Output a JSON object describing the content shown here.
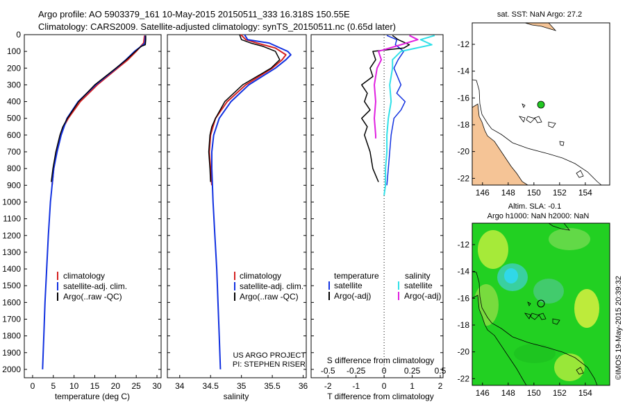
{
  "header": {
    "line1": "Argo profile: AO 5903379_161 10-May-2015 20150511_333 16.318S 150.55E",
    "line2": "Climatology: CARS2009. Satellite-adjusted climatology: synTS_20150511.nc (0.65d later)"
  },
  "colors": {
    "climatology": "#d42020",
    "satellite_temp": "#1030e0",
    "argo": "#000000",
    "satellite_sal": "#30e0e8",
    "argo_sal": "#e020e0",
    "land": "#f5c496",
    "sla_bg": "#22d022"
  },
  "profile_legend": [
    {
      "label": "climatology",
      "color": "#d42020"
    },
    {
      "label": "satellite-adj. clim.",
      "color": "#1030e0"
    },
    {
      "label": "Argo(..raw -QC)",
      "color": "#000000"
    }
  ],
  "diff_legend": {
    "temperature_header": "temperature",
    "salinity_header": "salinity",
    "entries": [
      {
        "label": "satellite",
        "color": "#1030e0"
      },
      {
        "label": "Argo(-adj)",
        "color": "#000000"
      },
      {
        "label": "satellite",
        "color": "#30e0e8"
      },
      {
        "label": "Argo(-adj)",
        "color": "#e020e0"
      }
    ]
  },
  "credit": {
    "line1": "US ARGO PROJECT",
    "line2": "PI: STEPHEN RISER"
  },
  "maps": {
    "sst_title": "sat. SST: NaN Argo: 27.2",
    "sla_title1": "Altim. SLA: -0.1",
    "sla_title2": "Argo h1000: NaN h2000: NaN",
    "x_ticks": [
      "146",
      "148",
      "150",
      "152",
      "154"
    ],
    "y_ticks": [
      "-12",
      "-14",
      "-16",
      "-18",
      "-20",
      "-22"
    ],
    "argo_position": {
      "lon": 150.55,
      "lat": -16.318
    }
  },
  "stamp": "©IMOS 19-May-2015 20:39:32",
  "chart_data": [
    {
      "type": "line",
      "xlabel": "temperature (deg C)",
      "ylabel": "",
      "xlim": [
        -2,
        31
      ],
      "ylim": [
        2050,
        0
      ],
      "x_ticks": [
        "0",
        "5",
        "10",
        "15",
        "20",
        "25",
        "30"
      ],
      "y_ticks": [
        "0",
        "100",
        "200",
        "300",
        "400",
        "500",
        "600",
        "700",
        "800",
        "900",
        "1000",
        "1100",
        "1200",
        "1300",
        "1400",
        "1500",
        "1600",
        "1700",
        "1800",
        "1900",
        "2000"
      ],
      "series": [
        {
          "name": "climatology",
          "color": "#d42020",
          "width": 2,
          "depth": [
            5,
            50,
            100,
            150,
            200,
            300,
            400,
            500,
            550,
            600,
            700,
            800,
            900
          ],
          "values": [
            27,
            26.8,
            25,
            23,
            20.5,
            15.6,
            11.5,
            8.6,
            7.5,
            6.8,
            5.8,
            5.1,
            4.7
          ]
        },
        {
          "name": "satellite-adj. clim.",
          "color": "#1030e0",
          "width": 2,
          "depth": [
            5,
            50,
            60,
            100,
            150,
            200,
            300,
            400,
            500,
            600,
            700,
            800,
            900,
            1000,
            1200,
            1400,
            1600,
            1800,
            2000
          ],
          "values": [
            27.2,
            27.1,
            26.7,
            24.6,
            22.5,
            20.2,
            15.2,
            11,
            8.3,
            6.9,
            5.9,
            5.1,
            4.7,
            4.3,
            3.8,
            3.4,
            3,
            2.7,
            2.4
          ]
        },
        {
          "name": "Argo(..raw -QC)",
          "color": "#000000",
          "width": 1.5,
          "depth": [
            5,
            30,
            60,
            70,
            100,
            150,
            200,
            300,
            400,
            500,
            550,
            600,
            700,
            800,
            880
          ],
          "values": [
            27.3,
            27.3,
            27.2,
            26.2,
            24.8,
            22.6,
            20.1,
            15,
            11.1,
            8.4,
            7.3,
            6.6,
            5.6,
            4.9,
            4.5
          ]
        }
      ]
    },
    {
      "type": "line",
      "xlabel": "salinity",
      "ylabel": "",
      "xlim": [
        33.8,
        36.05
      ],
      "ylim": [
        2050,
        0
      ],
      "x_ticks": [
        "34",
        "34.5",
        "35",
        "35.5",
        "36"
      ],
      "series": [
        {
          "name": "climatology",
          "color": "#d42020",
          "width": 2,
          "depth": [
            0,
            30,
            50,
            60,
            80,
            120,
            150,
            200,
            300,
            400,
            500,
            600,
            700,
            800,
            900
          ],
          "values": [
            34.99,
            35.07,
            35.25,
            35.35,
            35.55,
            35.72,
            35.66,
            35.5,
            35.07,
            34.77,
            34.58,
            34.5,
            34.48,
            34.5,
            34.52
          ]
        },
        {
          "name": "satellite-adj. clim.",
          "color": "#1030e0",
          "width": 2,
          "depth": [
            0,
            30,
            50,
            100,
            120,
            150,
            200,
            300,
            400,
            500,
            600,
            700,
            800,
            1000,
            1200,
            1400,
            1600,
            1800,
            2000
          ],
          "values": [
            35.05,
            35.1,
            35.45,
            35.75,
            35.8,
            35.72,
            35.55,
            35.12,
            34.83,
            34.64,
            34.55,
            34.52,
            34.52,
            34.54,
            34.57,
            34.6,
            34.62,
            34.64,
            34.66
          ]
        },
        {
          "name": "Argo(..raw -QC)",
          "color": "#000000",
          "width": 1.5,
          "depth": [
            0,
            30,
            50,
            70,
            100,
            150,
            200,
            300,
            400,
            500,
            550,
            600,
            700,
            800,
            880
          ],
          "values": [
            34.97,
            35.0,
            35.15,
            35.35,
            35.55,
            35.62,
            35.48,
            35.02,
            34.73,
            34.58,
            34.52,
            34.49,
            34.47,
            34.49,
            34.5
          ]
        }
      ]
    },
    {
      "type": "line",
      "xlabel": "T difference from climatology",
      "top_xlabel": "S difference from climatology",
      "ylabel": "",
      "xlim": [
        -2.6,
        2.1
      ],
      "ylim": [
        2050,
        0
      ],
      "x_ticks": [
        "-2",
        "-1",
        "0",
        "1",
        "2"
      ],
      "top_ticks": [
        "-0.5",
        "-0.25",
        "0",
        "0.25",
        "0.5"
      ],
      "series": [
        {
          "name": "satellite",
          "color": "#1030e0",
          "width": 1.5,
          "depth": [
            5,
            30,
            60,
            100,
            150,
            200,
            300,
            350,
            400,
            450,
            500,
            600,
            700,
            800,
            900
          ],
          "values": [
            0.1,
            0.45,
            0.4,
            0.7,
            0.5,
            0.35,
            0.6,
            0.45,
            0.75,
            0.6,
            0.35,
            0.25,
            0.2,
            0.15,
            0.1
          ]
        },
        {
          "name": "Argo(-adj)",
          "color": "#000000",
          "width": 1.5,
          "depth": [
            5,
            30,
            60,
            80,
            100,
            150,
            200,
            250,
            300,
            350,
            400,
            450,
            500,
            550,
            600,
            700,
            800,
            880
          ],
          "values": [
            0.3,
            0.5,
            0.9,
            0.7,
            -0.4,
            -0.3,
            -0.5,
            -0.4,
            -0.8,
            -0.6,
            -0.7,
            -0.5,
            -0.8,
            -0.6,
            -0.7,
            -0.5,
            -0.4,
            -0.2
          ]
        },
        {
          "name": "satellite",
          "color": "#30e0e8",
          "width": 2,
          "depth": [
            5,
            30,
            60,
            100,
            150,
            200,
            300,
            400,
            500,
            600,
            700,
            800,
            900,
            960
          ],
          "values": [
            1.8,
            1.3,
            1.7,
            0.6,
            0.3,
            0.3,
            0.2,
            0.25,
            0.15,
            0.1,
            0.1,
            0.05,
            0.05,
            0.0
          ]
        },
        {
          "name": "Argo(-adj)",
          "color": "#e020e0",
          "width": 2,
          "depth": [
            5,
            30,
            60,
            100,
            150,
            200,
            300,
            400,
            500,
            600,
            620
          ],
          "values": [
            0.9,
            1.2,
            0.6,
            -0.2,
            -0.1,
            -0.25,
            -0.35,
            -0.3,
            -0.35,
            -0.3,
            -0.3
          ]
        }
      ]
    }
  ]
}
